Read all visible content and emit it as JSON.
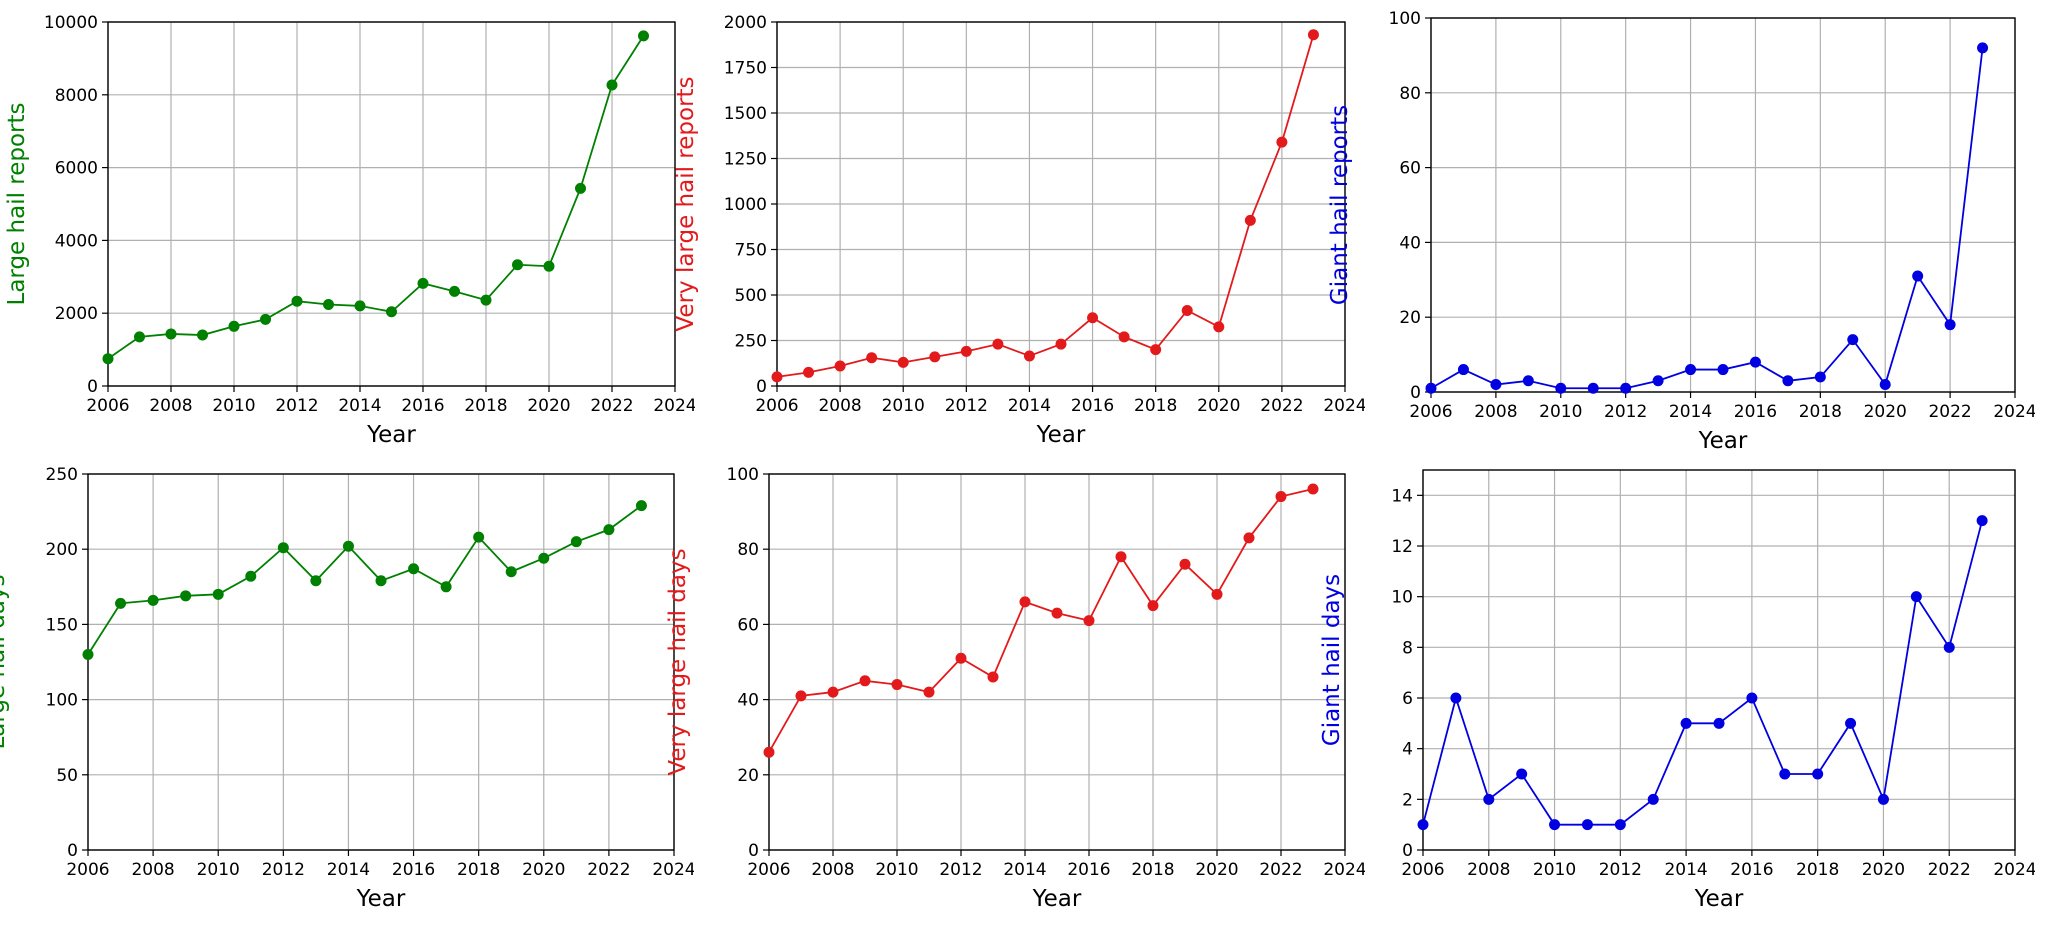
{
  "chart_data": [
    {
      "type": "line",
      "color": "#008000",
      "xlabel": "Year",
      "ylabel": "Large hail reports",
      "xlim": [
        2006,
        2024
      ],
      "ylim": [
        0,
        10000
      ],
      "xticks": [
        2006,
        2008,
        2010,
        2012,
        2014,
        2016,
        2018,
        2020,
        2022,
        2024
      ],
      "yticks": [
        0,
        2000,
        4000,
        6000,
        8000,
        10000
      ],
      "grid": true,
      "x": [
        2006,
        2007,
        2008,
        2009,
        2010,
        2011,
        2012,
        2013,
        2014,
        2015,
        2016,
        2017,
        2018,
        2019,
        2020,
        2021,
        2022,
        2023
      ],
      "y": [
        750,
        1350,
        1430,
        1400,
        1640,
        1830,
        2330,
        2240,
        2200,
        2040,
        2820,
        2600,
        2360,
        3330,
        3290,
        5430,
        8270,
        9620
      ]
    },
    {
      "type": "line",
      "color": "#e31a1c",
      "xlabel": "Year",
      "ylabel": "Very large hail reports",
      "xlim": [
        2006,
        2024
      ],
      "ylim": [
        0,
        2000
      ],
      "xticks": [
        2006,
        2008,
        2010,
        2012,
        2014,
        2016,
        2018,
        2020,
        2022,
        2024
      ],
      "yticks": [
        0,
        250,
        500,
        750,
        1000,
        1250,
        1500,
        1750,
        2000
      ],
      "grid": true,
      "x": [
        2006,
        2007,
        2008,
        2009,
        2010,
        2011,
        2012,
        2013,
        2014,
        2015,
        2016,
        2017,
        2018,
        2019,
        2020,
        2021,
        2022,
        2023
      ],
      "y": [
        50,
        75,
        110,
        155,
        130,
        160,
        190,
        230,
        165,
        230,
        375,
        270,
        200,
        415,
        325,
        910,
        1340,
        1930
      ]
    },
    {
      "type": "line",
      "color": "#0000e0",
      "xlabel": "Year",
      "ylabel": "Giant hail reports",
      "xlim": [
        2006,
        2024
      ],
      "ylim": [
        0,
        100
      ],
      "xticks": [
        2006,
        2008,
        2010,
        2012,
        2014,
        2016,
        2018,
        2020,
        2022,
        2024
      ],
      "yticks": [
        0,
        20,
        40,
        60,
        80,
        100
      ],
      "grid": true,
      "x": [
        2006,
        2007,
        2008,
        2009,
        2010,
        2011,
        2012,
        2013,
        2014,
        2015,
        2016,
        2017,
        2018,
        2019,
        2020,
        2021,
        2022,
        2023
      ],
      "y": [
        1,
        6,
        2,
        3,
        1,
        1,
        1,
        3,
        6,
        6,
        8,
        3,
        4,
        14,
        2,
        31,
        18,
        92
      ]
    },
    {
      "type": "line",
      "color": "#008000",
      "xlabel": "Year",
      "ylabel": "Large hail days",
      "xlim": [
        2006,
        2024
      ],
      "ylim": [
        0,
        250
      ],
      "xticks": [
        2006,
        2008,
        2010,
        2012,
        2014,
        2016,
        2018,
        2020,
        2022,
        2024
      ],
      "yticks": [
        0,
        50,
        100,
        150,
        200,
        250
      ],
      "grid": true,
      "x": [
        2006,
        2007,
        2008,
        2009,
        2010,
        2011,
        2012,
        2013,
        2014,
        2015,
        2016,
        2017,
        2018,
        2019,
        2020,
        2021,
        2022,
        2023
      ],
      "y": [
        130,
        164,
        166,
        169,
        170,
        182,
        201,
        179,
        202,
        179,
        187,
        175,
        208,
        185,
        194,
        205,
        213,
        229
      ]
    },
    {
      "type": "line",
      "color": "#e31a1c",
      "xlabel": "Year",
      "ylabel": "Very large hail days",
      "xlim": [
        2006,
        2024
      ],
      "ylim": [
        0,
        100
      ],
      "xticks": [
        2006,
        2008,
        2010,
        2012,
        2014,
        2016,
        2018,
        2020,
        2022,
        2024
      ],
      "yticks": [
        0,
        20,
        40,
        60,
        80,
        100
      ],
      "grid": true,
      "x": [
        2006,
        2007,
        2008,
        2009,
        2010,
        2011,
        2012,
        2013,
        2014,
        2015,
        2016,
        2017,
        2018,
        2019,
        2020,
        2021,
        2022,
        2023
      ],
      "y": [
        26,
        41,
        42,
        45,
        44,
        42,
        51,
        46,
        66,
        63,
        61,
        78,
        65,
        76,
        68,
        83,
        94,
        96
      ]
    },
    {
      "type": "line",
      "color": "#0000e0",
      "xlabel": "Year",
      "ylabel": "Giant hail days",
      "xlim": [
        2006,
        2024
      ],
      "ylim": [
        0,
        15
      ],
      "xticks": [
        2006,
        2008,
        2010,
        2012,
        2014,
        2016,
        2018,
        2020,
        2022,
        2024
      ],
      "yticks": [
        0,
        2,
        4,
        6,
        8,
        10,
        12,
        14
      ],
      "grid": true,
      "x": [
        2006,
        2007,
        2008,
        2009,
        2010,
        2011,
        2012,
        2013,
        2014,
        2015,
        2016,
        2017,
        2018,
        2019,
        2020,
        2021,
        2022,
        2023
      ],
      "y": [
        1,
        6,
        2,
        3,
        1,
        1,
        1,
        2,
        5,
        5,
        6,
        3,
        3,
        5,
        2,
        10,
        8,
        13
      ]
    }
  ]
}
